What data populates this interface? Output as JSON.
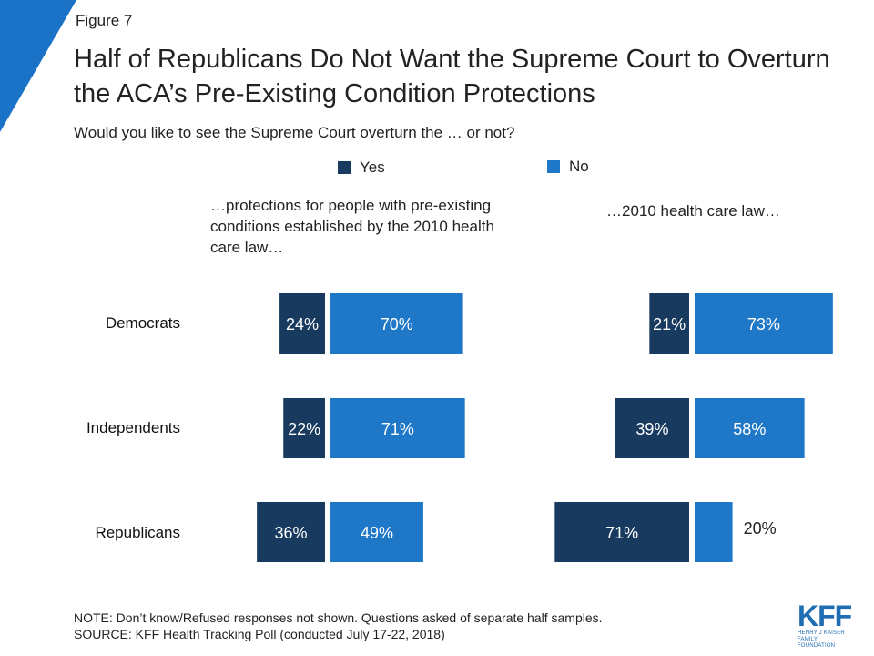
{
  "figure_label": "Figure 7",
  "title": "Half of Republicans Do Not Want the Supreme Court to Overturn the ACA’s Pre-Existing Condition Protections",
  "subtitle": "Would you like to see the Supreme Court overturn the … or not?",
  "legend": [
    {
      "label": "Yes",
      "color": "#173a5e"
    },
    {
      "label": "No",
      "color": "#1f77c8"
    }
  ],
  "colors": {
    "accent": "#1a73c7",
    "yes": "#173a5e",
    "no": "#1f77c8",
    "label_text": "#ffffff",
    "outside_label": "#222222"
  },
  "note": "NOTE: Don’t know/Refused responses not shown. Questions asked of separate half samples.",
  "source": "SOURCE: KFF Health Tracking Poll (conducted July 17-22, 2018)",
  "logo": {
    "text": "KFF",
    "subtext_1": "HENRY J KAISER",
    "subtext_2": "FAMILY FOUNDATION"
  },
  "chart_data": [
    {
      "type": "bar",
      "title": "…protections for people with pre-existing conditions established by the 2010 health care law…",
      "categories": [
        "Democrats",
        "Independents",
        "Republicans"
      ],
      "series": [
        {
          "name": "Yes",
          "values": [
            24,
            22,
            36
          ]
        },
        {
          "name": "No",
          "values": [
            70,
            71,
            49
          ]
        }
      ],
      "data_labels": {
        "Yes": [
          "24%",
          "22%",
          "36%"
        ],
        "No": [
          "70%",
          "71%",
          "49%"
        ]
      }
    },
    {
      "type": "bar",
      "title": "…2010 health care law…",
      "categories": [
        "Democrats",
        "Independents",
        "Republicans"
      ],
      "series": [
        {
          "name": "Yes",
          "values": [
            21,
            39,
            71
          ]
        },
        {
          "name": "No",
          "values": [
            73,
            58,
            20
          ]
        }
      ],
      "data_labels": {
        "Yes": [
          "21%",
          "39%",
          "71%"
        ],
        "No": [
          "73%",
          "58%",
          "20%"
        ]
      }
    }
  ]
}
